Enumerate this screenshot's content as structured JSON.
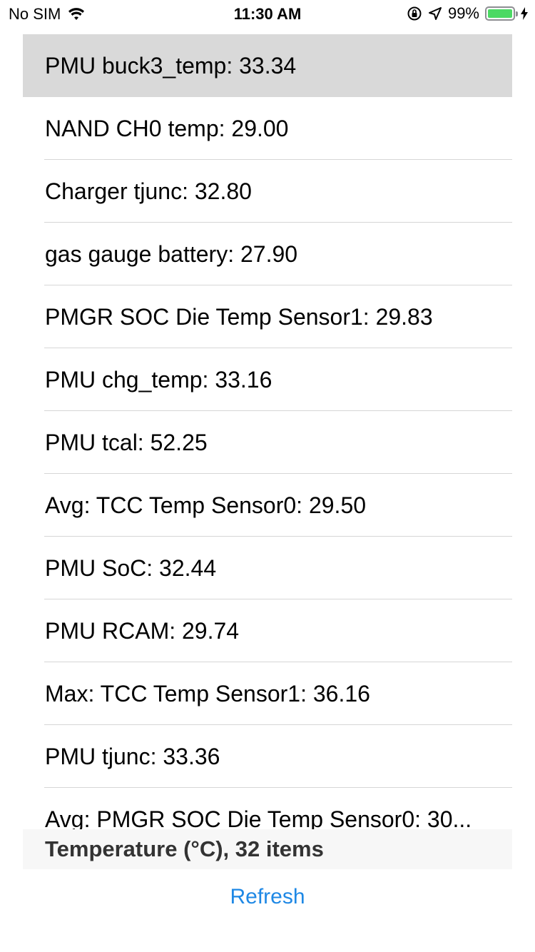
{
  "status_bar": {
    "carrier": "No SIM",
    "time": "11:30 AM",
    "battery_percent": "99%",
    "battery_level": 0.99,
    "icons": [
      "wifi-icon",
      "orientation-lock-icon",
      "location-arrow-icon",
      "battery-icon",
      "charging-bolt-icon"
    ],
    "battery_color": "#4cd964"
  },
  "list": {
    "selected_index": 0,
    "items": [
      {
        "label": "PMU buck3_temp: 33.34"
      },
      {
        "label": "NAND CH0 temp: 29.00"
      },
      {
        "label": "Charger tjunc: 32.80"
      },
      {
        "label": "gas gauge battery: 27.90"
      },
      {
        "label": "PMGR SOC Die Temp Sensor1: 29.83"
      },
      {
        "label": "PMU chg_temp: 33.16"
      },
      {
        "label": "PMU tcal: 52.25"
      },
      {
        "label": "Avg: TCC Temp Sensor0: 29.50"
      },
      {
        "label": "PMU SoC: 32.44"
      },
      {
        "label": "PMU RCAM: 29.74"
      },
      {
        "label": "Max: TCC Temp Sensor1: 36.16"
      },
      {
        "label": "PMU tjunc: 33.36"
      },
      {
        "label": "Avg: PMGR SOC Die Temp Sensor0: 30..."
      }
    ]
  },
  "footer": {
    "section_title": "Temperature (°C), 32 items",
    "refresh_label": "Refresh",
    "accent_color": "#1e88e5"
  }
}
